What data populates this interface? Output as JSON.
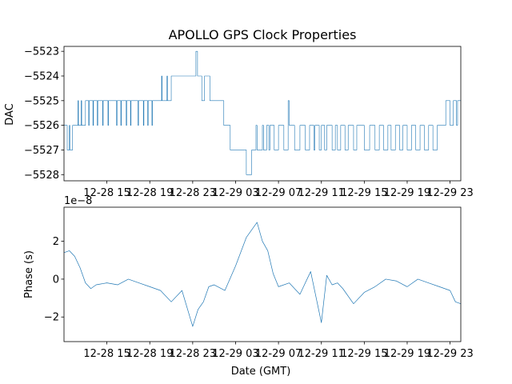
{
  "title": "APOLLO GPS Clock Properties",
  "chart_data": [
    {
      "type": "line",
      "title": "APOLLO GPS Clock Properties",
      "xlabel": "",
      "ylabel": "DAC",
      "ylim": [
        -5528.25,
        -5522.8
      ],
      "yticks": [
        -5528,
        -5527,
        -5526,
        -5525,
        -5524,
        -5523
      ],
      "ytick_labels": [
        "−5528",
        "−5527",
        "−5526",
        "−5525",
        "−5524",
        "−5523"
      ],
      "xlim": [
        0,
        37
      ],
      "xticks": [
        4,
        8,
        12,
        16,
        20,
        24,
        28,
        32,
        36
      ],
      "xtick_labels": [
        "12-28 15",
        "12-28 19",
        "12-28 23",
        "12-29 03",
        "12-29 07",
        "12-29 11",
        "12-29 15",
        "12-29 19",
        "12-29 23"
      ],
      "color": "#1f77b4",
      "linewidth": 0.6,
      "grid": false,
      "series": [
        {
          "x": [
            0,
            0.3,
            0.5,
            0.55,
            0.8,
            0.85,
            1.0,
            1.3,
            1.35,
            1.6,
            1.65,
            2.0,
            2.3,
            2.35,
            2.7,
            2.75,
            3.1,
            3.15,
            3.6,
            3.65,
            4.1,
            4.15,
            4.6,
            4.9,
            4.95,
            5.3,
            5.35,
            5.8,
            5.85,
            6.2,
            6.25,
            6.9,
            6.95,
            7.1,
            7.4,
            7.45,
            7.8,
            7.85,
            8.2,
            8.25,
            8.8,
            9.1,
            9.15,
            9.6,
            9.65,
            10.0,
            12.3,
            12.45,
            12.8,
            12.85,
            13.1,
            13.15,
            13.6,
            13.7,
            14.2,
            14.9,
            15.0,
            15.5,
            16.0,
            16.5,
            17.0,
            17.5,
            17.9,
            18.0,
            18.1,
            18.5,
            18.6,
            18.9,
            19.1,
            19.2,
            19.6,
            20.0,
            20.5,
            20.9,
            21.0,
            21.5,
            22.0,
            22.5,
            22.9,
            23.0,
            23.3,
            23.4,
            23.8,
            24.0,
            24.3,
            24.5,
            25.0,
            25.3,
            25.5,
            25.8,
            26.2,
            26.5,
            27.0,
            27.3,
            27.6,
            28.0,
            28.5,
            29.0,
            29.4,
            29.8,
            30.2,
            30.5,
            30.9,
            31.3,
            31.6,
            32.0,
            32.4,
            32.8,
            33.2,
            33.6,
            34.0,
            34.4,
            34.8,
            35.2,
            35.6,
            36.0,
            36.3,
            36.6,
            36.7,
            37.0
          ],
          "values": [
            -5526,
            -5527,
            -5526,
            -5527,
            -5526,
            -5526,
            -5526,
            -5525,
            -5526,
            -5525,
            -5526,
            -5525,
            -5526,
            -5525,
            -5526,
            -5525,
            -5526,
            -5525,
            -5526,
            -5525,
            -5526,
            -5525,
            -5525,
            -5526,
            -5525,
            -5526,
            -5525,
            -5526,
            -5525,
            -5526,
            -5525,
            -5526,
            -5525,
            -5525,
            -5526,
            -5525,
            -5526,
            -5525,
            -5526,
            -5525,
            -5525,
            -5524,
            -5525,
            -5524,
            -5525,
            -5524,
            -5523,
            -5524,
            -5524,
            -5525,
            -5524,
            -5524,
            -5525,
            -5525,
            -5525,
            -5526,
            -5526,
            -5527,
            -5527,
            -5527,
            -5528,
            -5527,
            -5526,
            -5527,
            -5527,
            -5526,
            -5527,
            -5526,
            -5527,
            -5526,
            -5527,
            -5526,
            -5527,
            -5525,
            -5526,
            -5527,
            -5526,
            -5527,
            -5526,
            -5526,
            -5527,
            -5526,
            -5527,
            -5526,
            -5527,
            -5526,
            -5527,
            -5526,
            -5527,
            -5526,
            -5527,
            -5526,
            -5527,
            -5526,
            -5526,
            -5527,
            -5526,
            -5527,
            -5526,
            -5527,
            -5526,
            -5527,
            -5526,
            -5527,
            -5526,
            -5527,
            -5526,
            -5527,
            -5526,
            -5527,
            -5526,
            -5527,
            -5526,
            -5526,
            -5525,
            -5526,
            -5525,
            -5526,
            -5525,
            -5525
          ]
        }
      ]
    },
    {
      "type": "line",
      "title": "",
      "xlabel": "Date (GMT)",
      "ylabel": "Phase (s)",
      "offset_text": "1e−8",
      "ylim": [
        -3.3,
        3.8
      ],
      "yticks": [
        -2,
        0,
        2
      ],
      "ytick_labels": [
        "−2",
        "0",
        "2"
      ],
      "xlim": [
        0,
        37
      ],
      "xticks": [
        4,
        8,
        12,
        16,
        20,
        24,
        28,
        32,
        36
      ],
      "xtick_labels": [
        "12-28 15",
        "12-28 19",
        "12-28 23",
        "12-29 03",
        "12-29 07",
        "12-29 11",
        "12-29 15",
        "12-29 19",
        "12-29 23"
      ],
      "color": "#1f77b4",
      "linewidth": 0.7,
      "grid": false,
      "series": [
        {
          "x": [
            0,
            0.5,
            1.0,
            1.5,
            2.0,
            2.5,
            3.0,
            4.0,
            5.0,
            6.0,
            7.0,
            8.0,
            9.0,
            10.0,
            11.0,
            12.0,
            12.5,
            13.0,
            13.5,
            14.0,
            15.0,
            16.0,
            17.0,
            18.0,
            18.5,
            19.0,
            19.5,
            20.0,
            21.0,
            22.0,
            23.0,
            24.0,
            24.5,
            25.0,
            25.5,
            26.0,
            27.0,
            28.0,
            29.0,
            30.0,
            31.0,
            32.0,
            33.0,
            34.0,
            35.0,
            35.5,
            36.0,
            36.5,
            37.0
          ],
          "values": [
            1.4,
            1.5,
            1.2,
            0.6,
            -0.2,
            -0.5,
            -0.3,
            -0.2,
            -0.3,
            0.0,
            -0.2,
            -0.4,
            -0.6,
            -1.2,
            -0.6,
            -2.5,
            -1.6,
            -1.2,
            -0.4,
            -0.3,
            -0.6,
            0.7,
            2.2,
            3.0,
            2.0,
            1.5,
            0.3,
            -0.4,
            -0.2,
            -0.8,
            0.4,
            -2.3,
            0.2,
            -0.3,
            -0.2,
            -0.5,
            -1.3,
            -0.7,
            -0.4,
            0.0,
            -0.1,
            -0.4,
            0.0,
            -0.2,
            -0.4,
            -0.5,
            -0.6,
            -1.2,
            -1.3
          ]
        }
      ]
    }
  ]
}
